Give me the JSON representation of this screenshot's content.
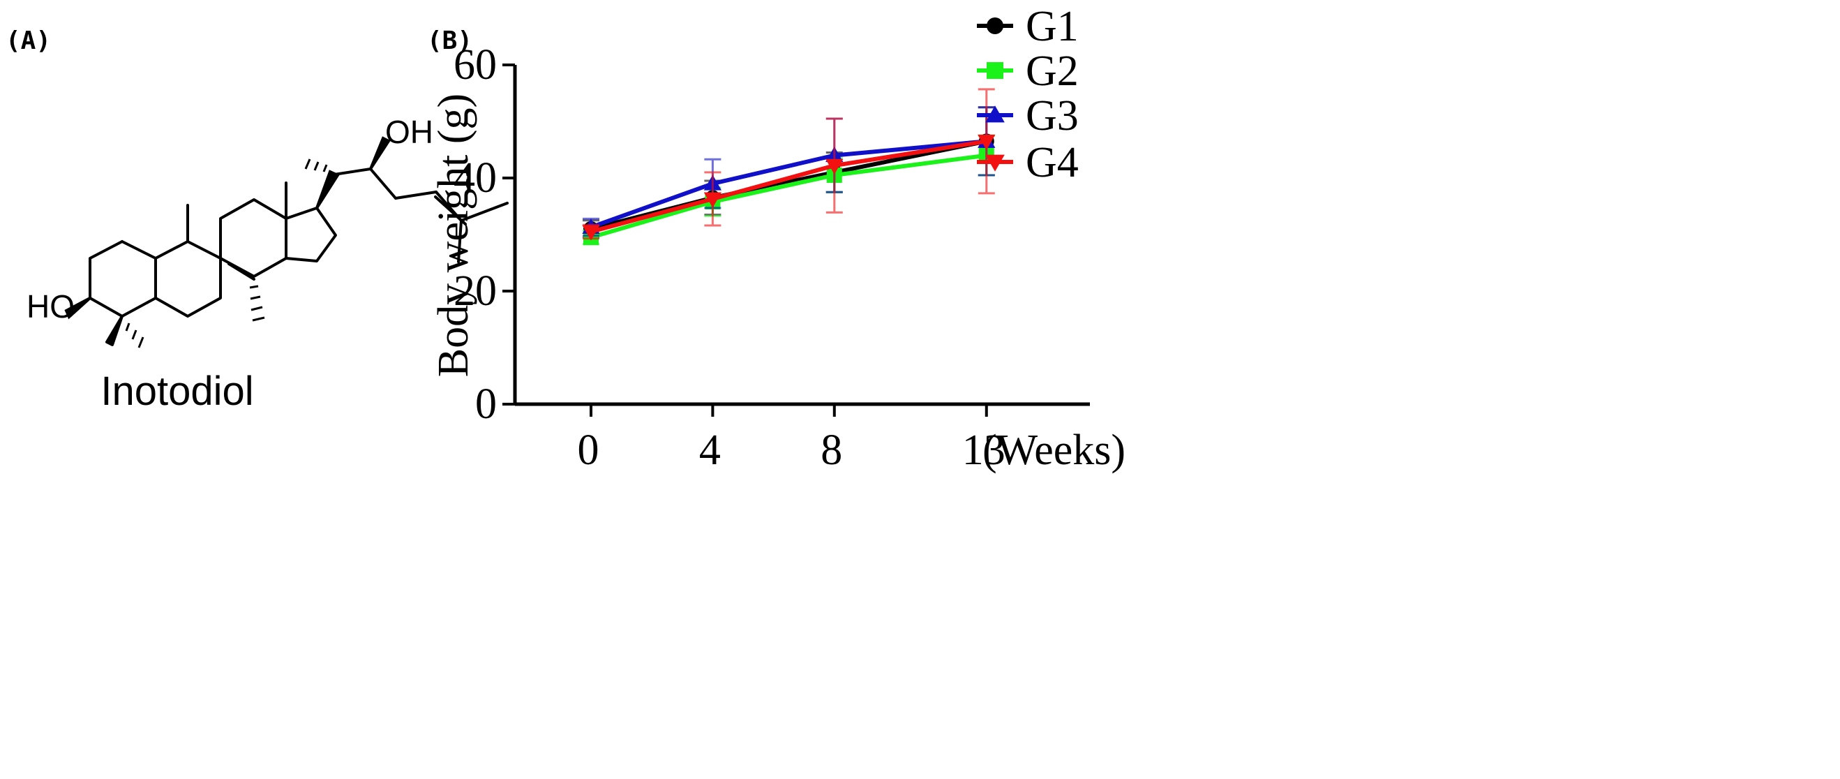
{
  "panel_a": {
    "label": "(A)",
    "compound_name": "Inotodiol",
    "hydroxyl_top_label": "OH",
    "hydroxyl_left_label": "HO"
  },
  "chart_data": {
    "type": "line",
    "panel_label": "(B)",
    "title": "",
    "xlabel": "",
    "x_unit_label": "(Weeks)",
    "ylabel": "Body weight (g)",
    "x": [
      0,
      4,
      8,
      13
    ],
    "x_tick_labels": [
      "0",
      "4",
      "8",
      "13"
    ],
    "xlim": [
      -2.5,
      16.4
    ],
    "ylim": [
      0,
      60
    ],
    "y_ticks": [
      0,
      20,
      40,
      60
    ],
    "grid": false,
    "legend_position": "top-right",
    "series": [
      {
        "name": "G1",
        "color": "#000000",
        "marker": "circle",
        "values": [
          31.0,
          36.5,
          41.0,
          46.5
        ],
        "errors": [
          1.5,
          3.0,
          3.5,
          6.0
        ]
      },
      {
        "name": "G2",
        "color": "#1AF21A",
        "marker": "square",
        "values": [
          29.5,
          35.8,
          40.5,
          44.0
        ],
        "errors": [
          1.2,
          2.5,
          3.0,
          3.5
        ]
      },
      {
        "name": "G3",
        "color": "#1010C8",
        "marker": "triangle-up",
        "values": [
          31.3,
          39.0,
          44.0,
          46.5
        ],
        "errors": [
          1.5,
          4.3,
          6.5,
          6.0
        ]
      },
      {
        "name": "G4",
        "color": "#F21010",
        "marker": "triangle-down",
        "values": [
          30.5,
          36.3,
          42.2,
          46.5
        ],
        "errors": [
          1.2,
          4.7,
          8.3,
          9.2
        ]
      }
    ]
  }
}
